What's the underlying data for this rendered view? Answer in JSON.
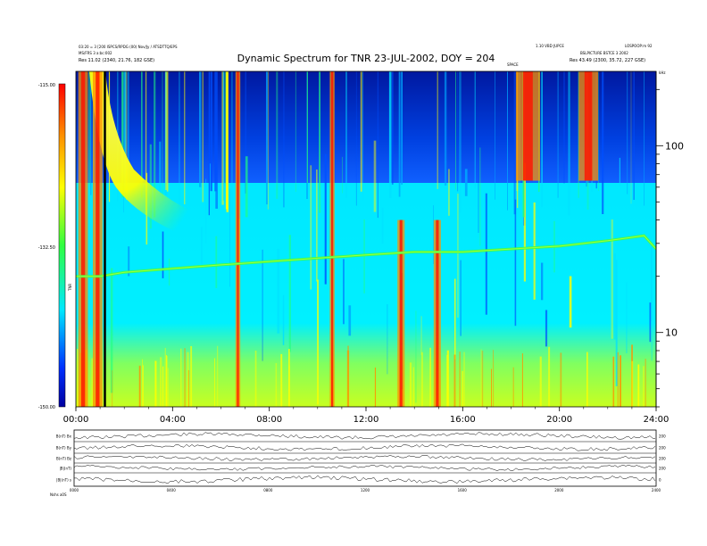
{
  "header": {
    "title": "Dynamic Spectrum for TNR 23-JUL-2002, DOY = 204",
    "left_line1": "03:20 = 3 [200 ISPCS/RPDG (00) Nov/Jy / ATSDTTQ/EPS",
    "left_line2": "MS/FRS 3 a:bc:002",
    "left_res": "Res     11.02 (2340, 21.76, 182 GSE)",
    "right_line1": "1.10 VBD JUPCE",
    "right_line2": "LOSPOOP:m 92",
    "right_line3": "BSLPICTURE BSTCE 3 2002",
    "right_res": "Res     43.49 (2300, 35.72, 227 GSE)",
    "right_small": "SPACE",
    "axis_unit": "kHz"
  },
  "colorbar": {
    "top_label": "-115.00",
    "mid_label": "-132.50",
    "bottom_label": "-150.00",
    "side_label": "TNR"
  },
  "chart_data": {
    "type": "heatmap",
    "title": "Dynamic Spectrum for TNR 23-JUL-2002, DOY = 204",
    "x": {
      "label": "",
      "ticks": [
        "00:00",
        "04:00",
        "08:00",
        "12:00",
        "16:00",
        "20:00",
        "24:00"
      ],
      "range_hours": [
        0,
        24
      ]
    },
    "y": {
      "label": "kHz",
      "scale": "log",
      "ticks": [
        10,
        100
      ],
      "range_khz": [
        4,
        250
      ]
    },
    "color_scale": {
      "min": -150.0,
      "mid": -132.5,
      "max": -115.0,
      "colors": [
        "#0000a0",
        "#0030ff",
        "#00e8ff",
        "#30ff40",
        "#ffff00",
        "#ff9000",
        "#ff0000"
      ]
    },
    "marker_time_hours": 1.2,
    "plasma_line": {
      "time_hours": [
        0,
        1,
        2,
        4,
        6,
        8,
        10,
        12,
        14,
        16,
        18,
        20,
        22,
        23.5,
        24
      ],
      "freq_khz": [
        20,
        20,
        21,
        22,
        23,
        24,
        25,
        26,
        27,
        27,
        28,
        29,
        31,
        33,
        28
      ]
    },
    "type3_bursts": [
      {
        "start_hours": 0.1,
        "end_hours": 0.5,
        "freq_low_khz": 4,
        "freq_high_khz": 250
      },
      {
        "start_hours": 0.7,
        "end_hours": 1.1,
        "freq_low_khz": 4,
        "freq_high_khz": 250
      },
      {
        "start_hours": 6.6,
        "end_hours": 6.8,
        "freq_low_khz": 4,
        "freq_high_khz": 250
      },
      {
        "start_hours": 10.5,
        "end_hours": 10.7,
        "freq_low_khz": 4,
        "freq_high_khz": 250
      },
      {
        "start_hours": 13.3,
        "end_hours": 13.6,
        "freq_low_khz": 4,
        "freq_high_khz": 40
      },
      {
        "start_hours": 14.8,
        "end_hours": 15.1,
        "freq_low_khz": 4,
        "freq_high_khz": 40
      },
      {
        "start_hours": 18.2,
        "end_hours": 19.2,
        "freq_low_khz": 65,
        "freq_high_khz": 250
      },
      {
        "start_hours": 20.8,
        "end_hours": 21.6,
        "freq_low_khz": 65,
        "freq_high_khz": 250
      }
    ]
  },
  "panels": {
    "labels": [
      "B(nT) Bx",
      "B(nT) By",
      "B(nT) Bz",
      "|B|(nT)",
      "|B|(nT) s"
    ],
    "right_ticks": [
      "200",
      "200",
      "200",
      "200",
      "0"
    ],
    "units": "Nshs  a0S",
    "time_ticks": [
      "0000",
      "0400",
      "0800",
      "1200",
      "1600",
      "2000",
      "2400"
    ]
  }
}
